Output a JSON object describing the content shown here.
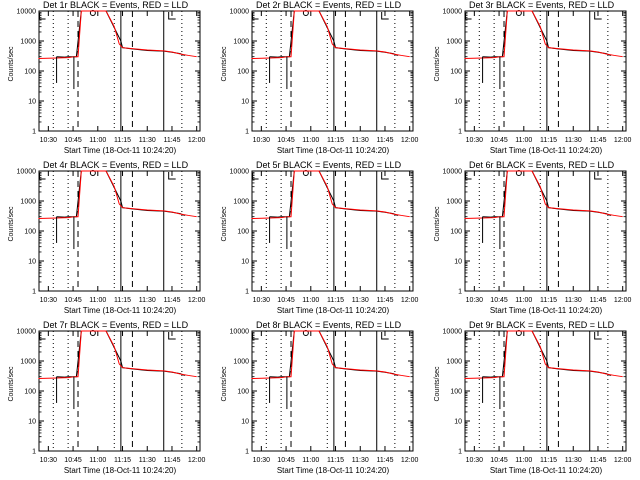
{
  "panels": [
    {
      "title": "Det 1r BLACK = Events, RED = LLD"
    },
    {
      "title": "Det 2r BLACK = Events, RED = LLD"
    },
    {
      "title": "Det 3r BLACK = Events, RED = LLD"
    },
    {
      "title": "Det 4r BLACK = Events, RED = LLD"
    },
    {
      "title": "Det 5r BLACK = Events, RED = LLD"
    },
    {
      "title": "Det 6r BLACK = Events, RED = LLD"
    },
    {
      "title": "Det 7r BLACK = Events, RED = LLD"
    },
    {
      "title": "Det 8r BLACK = Events, RED = LLD"
    },
    {
      "title": "Det 9r BLACK = Events, RED = LLD"
    }
  ],
  "common": {
    "ylabel": "Counts/sec",
    "xlabel": "Start Time (18-Oct-11 10:24:20)",
    "colors": {
      "events": "#000000",
      "lld": "#ff0000"
    }
  },
  "chart_data": {
    "type": "line",
    "yscale": "log",
    "ylim": [
      1,
      10000
    ],
    "yticks": [
      1,
      10,
      100,
      1000,
      10000
    ],
    "xticks": [
      "10:30",
      "10:45",
      "11:00",
      "11:15",
      "11:30",
      "11:45",
      "12:00"
    ],
    "xlim": [
      "10:24:20",
      "12:02:00"
    ],
    "markers": {
      "dotted": [
        "10:33:00",
        "10:42:00",
        "11:10:00",
        "11:51:00"
      ],
      "dashed": [
        "10:48:00",
        "11:21:00"
      ],
      "solid": [
        "11:14:00",
        "11:40:00"
      ]
    },
    "series": [
      {
        "name": "Events",
        "points": [
          [
            "10:35",
            "300"
          ],
          [
            "10:40",
            "290"
          ],
          [
            "10:42",
            "300"
          ],
          [
            "10:46",
            "300"
          ],
          [
            "10:47",
            "300"
          ],
          [
            "10:50",
            "10000"
          ],
          [
            "11:05",
            "10000"
          ],
          [
            "11:14",
            "1000"
          ],
          [
            "11:15",
            "600"
          ],
          [
            "11:20",
            "550"
          ],
          [
            "11:30",
            "480"
          ],
          [
            "11:40",
            "460"
          ],
          [
            "11:45",
            "420"
          ],
          [
            "11:50",
            "380"
          ],
          [
            "11:52",
            "340"
          ],
          [
            "11:53",
            "330"
          ]
        ]
      },
      {
        "name": "LLD",
        "points": [
          [
            "10:24",
            "260"
          ],
          [
            "10:35",
            "270"
          ],
          [
            "10:42",
            "280"
          ],
          [
            "10:46",
            "300"
          ],
          [
            "10:48",
            "300"
          ],
          [
            "10:50",
            "10000"
          ],
          [
            "11:05",
            "10000"
          ],
          [
            "11:10",
            "3000"
          ],
          [
            "11:13",
            "800"
          ],
          [
            "11:15",
            "600"
          ],
          [
            "11:20",
            "560"
          ],
          [
            "11:30",
            "500"
          ],
          [
            "11:40",
            "470"
          ],
          [
            "11:45",
            "430"
          ],
          [
            "11:50",
            "370"
          ],
          [
            "11:55",
            "330"
          ],
          [
            "12:00",
            "300"
          ]
        ]
      }
    ]
  }
}
